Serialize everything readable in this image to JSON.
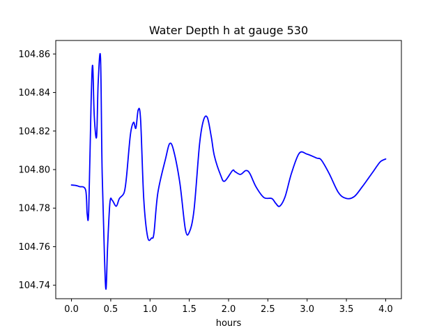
{
  "chart_data": {
    "type": "line",
    "title": "Water Depth h at gauge 530",
    "xlabel": "hours",
    "ylabel": "",
    "xlim": [
      -0.2,
      4.2
    ],
    "ylim": [
      104.733,
      104.867
    ],
    "grid": false,
    "x_ticks": [
      0.0,
      0.5,
      1.0,
      1.5,
      2.0,
      2.5,
      3.0,
      3.5,
      4.0
    ],
    "x_tick_labels": [
      "0.0",
      "0.5",
      "1.0",
      "1.5",
      "2.0",
      "2.5",
      "3.0",
      "3.5",
      "4.0"
    ],
    "y_ticks": [
      104.74,
      104.76,
      104.78,
      104.8,
      104.82,
      104.84,
      104.86
    ],
    "y_tick_labels": [
      "104.74",
      "104.76",
      "104.78",
      "104.80",
      "104.82",
      "104.84",
      "104.86"
    ],
    "series": [
      {
        "color": "#0000ff",
        "x": [
          0.0,
          0.05,
          0.1,
          0.18,
          0.2,
          0.22,
          0.25,
          0.27,
          0.29,
          0.32,
          0.34,
          0.37,
          0.39,
          0.42,
          0.44,
          0.46,
          0.49,
          0.52,
          0.57,
          0.61,
          0.67,
          0.7,
          0.75,
          0.79,
          0.82,
          0.85,
          0.88,
          0.92,
          0.97,
          1.02,
          1.05,
          1.1,
          1.2,
          1.25,
          1.3,
          1.38,
          1.45,
          1.5,
          1.56,
          1.63,
          1.68,
          1.73,
          1.78,
          1.82,
          1.9,
          1.95,
          2.05,
          2.08,
          2.15,
          2.22,
          2.27,
          2.35,
          2.45,
          2.55,
          2.6,
          2.65,
          2.72,
          2.8,
          2.9,
          3.0,
          3.12,
          3.18,
          3.28,
          3.4,
          3.5,
          3.6,
          3.7,
          3.78,
          3.85,
          3.93,
          4.0
        ],
        "y": [
          104.792,
          104.7918,
          104.7912,
          104.7895,
          104.777,
          104.779,
          104.835,
          104.854,
          104.828,
          104.817,
          104.845,
          104.858,
          104.8,
          104.755,
          104.738,
          104.76,
          104.783,
          104.784,
          104.781,
          104.785,
          104.788,
          104.796,
          104.818,
          104.8245,
          104.8215,
          104.831,
          104.826,
          104.785,
          104.765,
          104.7645,
          104.767,
          104.788,
          104.806,
          104.8135,
          104.81,
          104.793,
          104.769,
          104.7675,
          104.779,
          104.813,
          104.8255,
          104.827,
          104.817,
          104.807,
          104.797,
          104.794,
          104.7995,
          104.799,
          104.7975,
          104.7995,
          104.798,
          104.791,
          104.7855,
          104.785,
          104.7825,
          104.781,
          104.786,
          104.798,
          104.8085,
          104.808,
          104.806,
          104.805,
          104.798,
          104.788,
          104.785,
          104.786,
          104.791,
          104.7955,
          104.7995,
          104.804,
          104.8055
        ]
      }
    ]
  }
}
